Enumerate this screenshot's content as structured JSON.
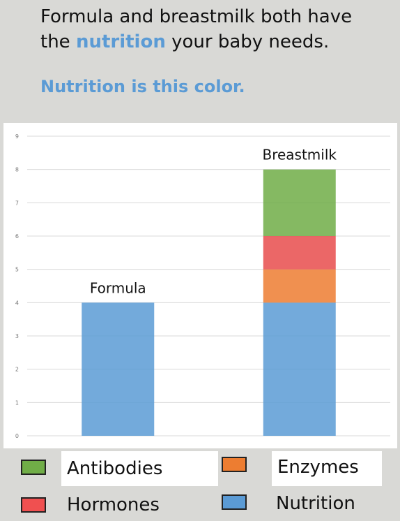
{
  "header": {
    "line1_a": "Formula and breastmilk both have",
    "line2_a": "the ",
    "line2_highlight": "nutrition",
    "line2_b": " your baby needs.",
    "subline": "Nutrition is this color."
  },
  "chart_data": {
    "type": "bar",
    "stacked": true,
    "categories": [
      "Formula",
      "Breastmilk"
    ],
    "series": [
      {
        "name": "Nutrition",
        "values": [
          4,
          4
        ],
        "color": "#5b9bd5"
      },
      {
        "name": "Enzymes",
        "values": [
          0,
          1
        ],
        "color": "#ed7d31"
      },
      {
        "name": "Hormones",
        "values": [
          0,
          1
        ],
        "color": "#e84c4c"
      },
      {
        "name": "Antibodies",
        "values": [
          0,
          2
        ],
        "color": "#70ad47"
      }
    ],
    "ylim": [
      0,
      9
    ],
    "yticks": [
      "0",
      "1",
      "2",
      "3",
      "4",
      "5",
      "6",
      "7",
      "8",
      "9"
    ],
    "grid": true,
    "legend_position": "bottom"
  },
  "legend": {
    "items": [
      {
        "label": "Antibodies",
        "color": "#70ad47"
      },
      {
        "label": "Enzymes",
        "color": "#ed7d31"
      },
      {
        "label": "Hormones",
        "color": "#f05050"
      },
      {
        "label": "Nutrition",
        "color": "#5b9bd5"
      }
    ]
  }
}
